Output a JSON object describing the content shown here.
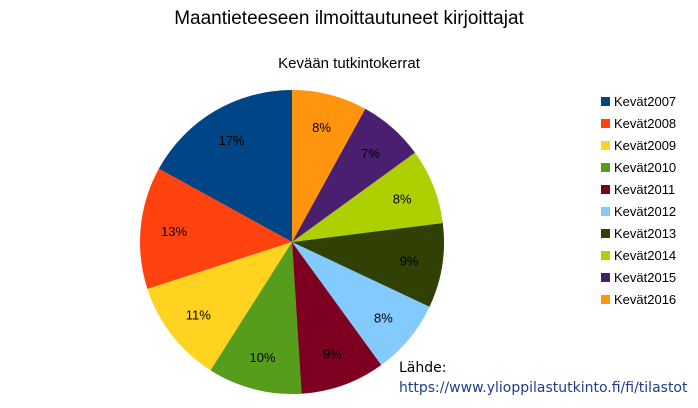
{
  "chart_data": {
    "type": "pie",
    "title": "Maantieteeseen ilmoittautuneet kirjoittajat",
    "subtitle": "Kevään tutkintokerrat",
    "slices": [
      {
        "label": "Kevät2007",
        "pct": 17,
        "color": "#004586"
      },
      {
        "label": "Kevät2008",
        "pct": 13,
        "color": "#ff420e"
      },
      {
        "label": "Kevät2009",
        "pct": 11,
        "color": "#ffd320"
      },
      {
        "label": "Kevät2010",
        "pct": 10,
        "color": "#579d1c"
      },
      {
        "label": "Kevät2011",
        "pct": 9,
        "color": "#7e0021"
      },
      {
        "label": "Kevät2012",
        "pct": 8,
        "color": "#83caff"
      },
      {
        "label": "Kevät2013",
        "pct": 9,
        "color": "#314004"
      },
      {
        "label": "Kevät2014",
        "pct": 8,
        "color": "#aecf00"
      },
      {
        "label": "Kevät2015",
        "pct": 7,
        "color": "#4b1f6f"
      },
      {
        "label": "Kevät2016",
        "pct": 8,
        "color": "#ff950e"
      }
    ],
    "legend_position": "right"
  },
  "source": {
    "label": "Lähde:",
    "url": "https://www.ylioppilastutkinto.fi/fi/tilastot"
  }
}
